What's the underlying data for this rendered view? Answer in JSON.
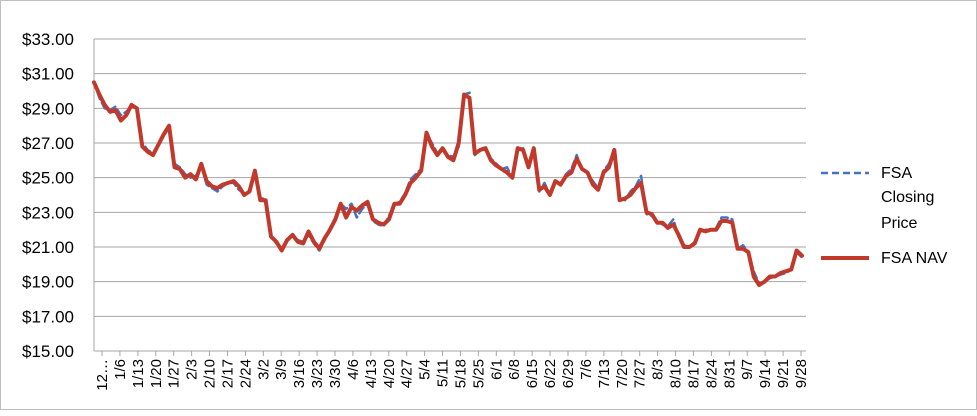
{
  "chart_data": {
    "type": "line",
    "title": "",
    "xlabel": "",
    "ylabel": "",
    "ylim": [
      15,
      33
    ],
    "y_ticks": [
      "$15.00",
      "$17.00",
      "$19.00",
      "$21.00",
      "$23.00",
      "$25.00",
      "$27.00",
      "$29.00",
      "$31.00",
      "$33.00"
    ],
    "x_tick_labels": [
      "12…",
      "1/6",
      "1/13",
      "1/20",
      "1/27",
      "2/3",
      "2/10",
      "2/17",
      "2/24",
      "3/2",
      "3/9",
      "3/16",
      "3/23",
      "3/30",
      "4/6",
      "4/13",
      "4/20",
      "4/27",
      "5/4",
      "5/11",
      "5/18",
      "5/25",
      "6/1",
      "6/8",
      "6/15",
      "6/22",
      "6/29",
      "7/6",
      "7/13",
      "7/20",
      "7/27",
      "8/3",
      "8/10",
      "8/17",
      "8/24",
      "8/31",
      "9/7",
      "9/14",
      "9/21",
      "9/28"
    ],
    "grid": "horizontal",
    "legend_position": "right",
    "series": [
      {
        "name": "FSA Closing Price",
        "color": "#4472c4",
        "style": "dashed",
        "values": [
          30.5,
          29.6,
          29.0,
          28.9,
          29.1,
          28.6,
          28.8,
          29.1,
          29.0,
          27.0,
          26.6,
          26.4,
          26.9,
          27.4,
          27.9,
          25.8,
          25.6,
          25.2,
          25.0,
          25.1,
          25.7,
          24.6,
          24.4,
          24.2,
          24.5,
          24.7,
          24.7,
          24.3,
          24.1,
          24.2,
          25.3,
          23.8,
          23.8,
          21.6,
          21.2,
          20.9,
          21.4,
          21.7,
          21.4,
          21.3,
          21.7,
          21.2,
          20.8,
          21.4,
          22.1,
          22.7,
          23.5,
          23.2,
          23.5,
          22.7,
          23.2,
          23.5,
          22.5,
          22.3,
          22.2,
          22.8,
          23.5,
          23.6,
          24.1,
          24.9,
          25.2,
          25.5,
          27.5,
          27.0,
          26.4,
          26.6,
          26.3,
          26.2,
          26.8,
          29.8,
          29.9,
          26.3,
          26.6,
          26.6,
          26.1,
          25.8,
          25.5,
          25.6,
          25.0,
          26.5,
          26.7,
          25.7,
          26.6,
          24.2,
          24.7,
          24.0,
          24.7,
          24.6,
          25.2,
          25.5,
          26.3,
          25.4,
          25.3,
          24.8,
          24.4,
          25.4,
          25.8,
          26.5,
          23.8,
          23.7,
          24.2,
          24.5,
          25.1,
          22.9,
          22.8,
          22.5,
          22.3,
          22.2,
          22.6,
          21.6,
          21.1,
          21.0,
          21.3,
          21.9,
          22.0,
          22.0,
          22.1,
          22.7,
          22.7,
          22.6,
          20.9,
          21.1,
          20.7,
          19.6,
          18.9,
          19.0,
          19.2,
          19.3,
          19.4,
          19.5,
          19.7,
          20.7,
          20.4
        ]
      },
      {
        "name": "FSA NAV",
        "color": "#c0392b",
        "style": "solid",
        "values": [
          30.5,
          29.8,
          29.2,
          28.8,
          28.9,
          28.3,
          28.6,
          29.2,
          29.0,
          26.8,
          26.5,
          26.3,
          26.9,
          27.5,
          28.0,
          25.6,
          25.5,
          25.0,
          25.2,
          24.9,
          25.8,
          24.8,
          24.5,
          24.4,
          24.6,
          24.7,
          24.8,
          24.5,
          24.0,
          24.2,
          25.4,
          23.7,
          23.7,
          21.6,
          21.3,
          20.8,
          21.4,
          21.7,
          21.3,
          21.2,
          21.9,
          21.3,
          20.9,
          21.5,
          22.0,
          22.6,
          23.5,
          22.7,
          23.3,
          23.1,
          23.4,
          23.6,
          22.6,
          22.4,
          22.3,
          22.6,
          23.5,
          23.5,
          24.0,
          24.7,
          25.0,
          25.4,
          27.6,
          26.8,
          26.3,
          26.7,
          26.2,
          26.0,
          27.0,
          29.8,
          29.6,
          26.4,
          26.6,
          26.7,
          26.0,
          25.7,
          25.5,
          25.3,
          25.0,
          26.7,
          26.6,
          25.6,
          26.7,
          24.3,
          24.5,
          24.0,
          24.8,
          24.6,
          25.1,
          25.3,
          26.1,
          25.5,
          25.3,
          24.6,
          24.3,
          25.3,
          25.6,
          26.6,
          23.7,
          23.8,
          24.0,
          24.4,
          24.7,
          23.0,
          22.9,
          22.4,
          22.4,
          22.1,
          22.3,
          21.7,
          21.0,
          21.0,
          21.2,
          22.0,
          21.9,
          22.0,
          22.0,
          22.5,
          22.5,
          22.4,
          20.9,
          20.9,
          20.7,
          19.3,
          18.8,
          19.0,
          19.3,
          19.3,
          19.5,
          19.6,
          19.7,
          20.8,
          20.5
        ]
      }
    ],
    "legend": [
      {
        "label_lines": [
          "FSA",
          "Closing",
          "Price"
        ],
        "series": 0
      },
      {
        "label_lines": [
          "FSA NAV"
        ],
        "series": 1
      }
    ]
  }
}
